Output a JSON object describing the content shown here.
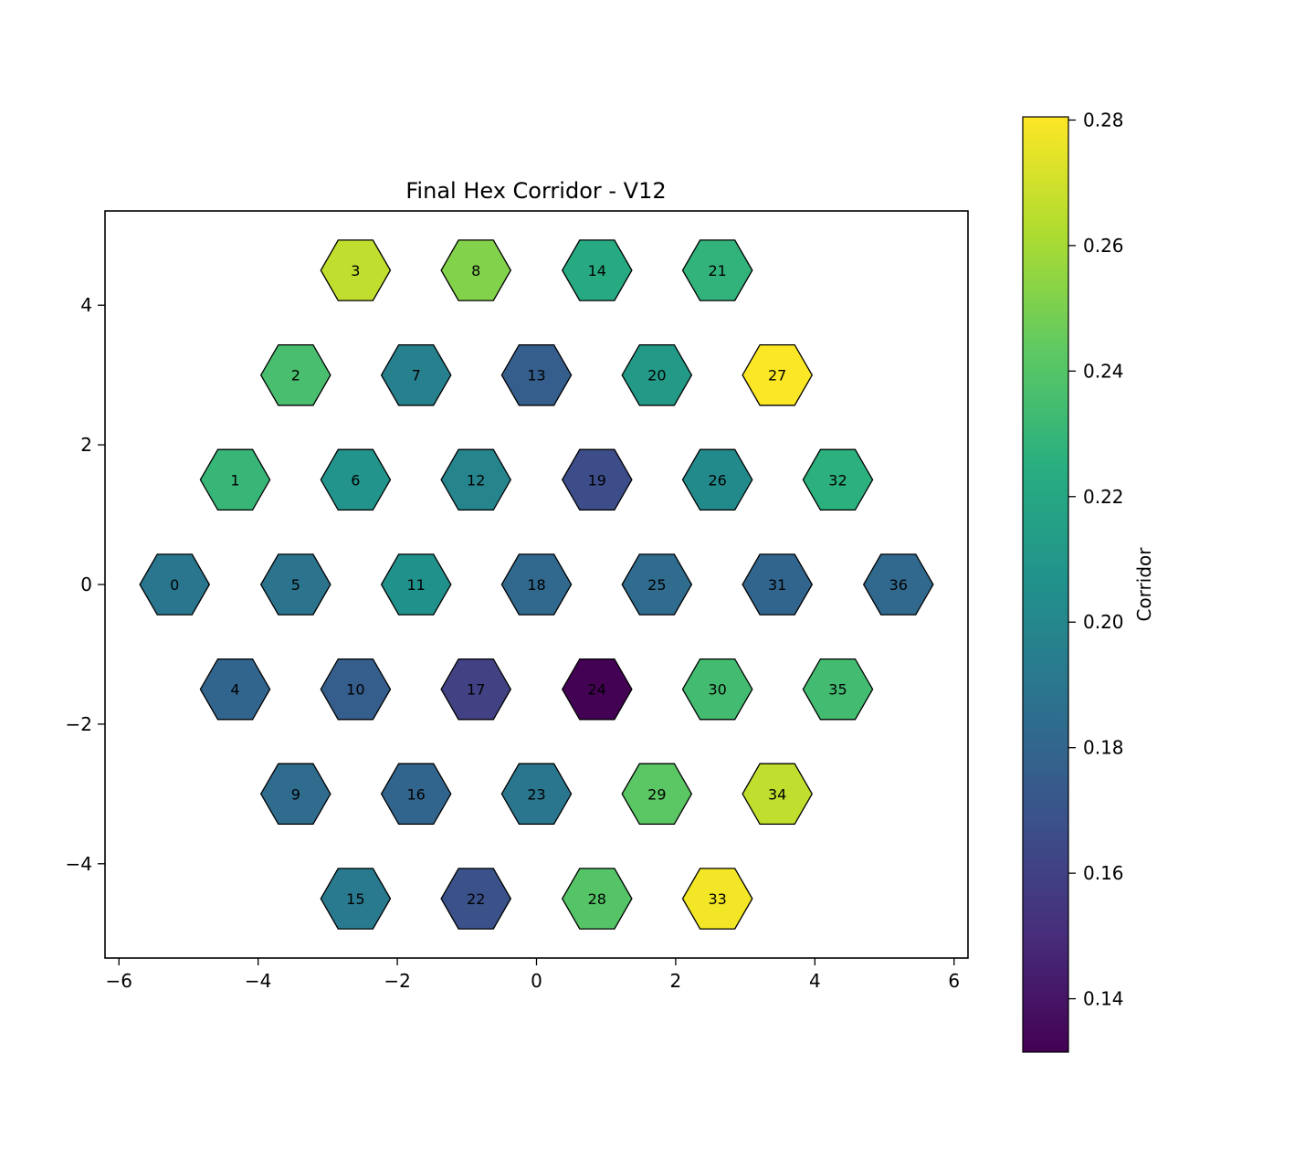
{
  "chart_data": {
    "type": "heatmap",
    "title": "Final Hex Corridor - V12",
    "xlabel": "",
    "ylabel": "",
    "xlim": [
      -6.2,
      6.2
    ],
    "ylim": [
      -5.35,
      5.35
    ],
    "xticks": [
      -6,
      -4,
      -2,
      0,
      2,
      4,
      6
    ],
    "xtick_labels": [
      "−6",
      "−4",
      "−2",
      "0",
      "2",
      "4",
      "6"
    ],
    "yticks": [
      -4,
      -2,
      0,
      2,
      4
    ],
    "ytick_labels": [
      "−4",
      "−2",
      "0",
      "2",
      "4"
    ],
    "grid": false,
    "colormap": "viridis",
    "colorbar": {
      "label": "Corridor",
      "range": [
        0.1315,
        0.2805
      ],
      "ticks": [
        0.14,
        0.16,
        0.18,
        0.2,
        0.22,
        0.24,
        0.26,
        0.28
      ],
      "tick_labels": [
        "0.14",
        "0.16",
        "0.18",
        "0.20",
        "0.22",
        "0.24",
        "0.26",
        "0.28"
      ]
    },
    "cells": [
      {
        "label": "0",
        "x": -5.2,
        "y": 0.0,
        "value": 0.19
      },
      {
        "label": "1",
        "x": -4.33,
        "y": 1.5,
        "value": 0.23
      },
      {
        "label": "2",
        "x": -3.46,
        "y": 3.0,
        "value": 0.236
      },
      {
        "label": "3",
        "x": -2.6,
        "y": 4.5,
        "value": 0.266
      },
      {
        "label": "4",
        "x": -4.33,
        "y": -1.5,
        "value": 0.18
      },
      {
        "label": "5",
        "x": -3.46,
        "y": 0.0,
        "value": 0.188
      },
      {
        "label": "6",
        "x": -2.6,
        "y": 1.5,
        "value": 0.208
      },
      {
        "label": "7",
        "x": -1.73,
        "y": 3.0,
        "value": 0.196
      },
      {
        "label": "8",
        "x": -0.87,
        "y": 4.5,
        "value": 0.252
      },
      {
        "label": "9",
        "x": -3.46,
        "y": -3.0,
        "value": 0.184
      },
      {
        "label": "10",
        "x": -2.6,
        "y": -1.5,
        "value": 0.176
      },
      {
        "label": "11",
        "x": -1.73,
        "y": 0.0,
        "value": 0.206
      },
      {
        "label": "12",
        "x": -0.87,
        "y": 1.5,
        "value": 0.198
      },
      {
        "label": "13",
        "x": 0.0,
        "y": 3.0,
        "value": 0.176
      },
      {
        "label": "14",
        "x": 0.87,
        "y": 4.5,
        "value": 0.222
      },
      {
        "label": "15",
        "x": -2.6,
        "y": -4.5,
        "value": 0.192
      },
      {
        "label": "16",
        "x": -1.73,
        "y": -3.0,
        "value": 0.18
      },
      {
        "label": "17",
        "x": -0.87,
        "y": -1.5,
        "value": 0.16
      },
      {
        "label": "18",
        "x": 0.0,
        "y": 0.0,
        "value": 0.182
      },
      {
        "label": "19",
        "x": 0.87,
        "y": 1.5,
        "value": 0.166
      },
      {
        "label": "20",
        "x": 1.73,
        "y": 3.0,
        "value": 0.212
      },
      {
        "label": "21",
        "x": 2.6,
        "y": 4.5,
        "value": 0.228
      },
      {
        "label": "22",
        "x": -0.87,
        "y": -4.5,
        "value": 0.168
      },
      {
        "label": "23",
        "x": 0.0,
        "y": -3.0,
        "value": 0.19
      },
      {
        "label": "24",
        "x": 0.87,
        "y": -1.5,
        "value": 0.132
      },
      {
        "label": "25",
        "x": 1.73,
        "y": 0.0,
        "value": 0.184
      },
      {
        "label": "26",
        "x": 2.6,
        "y": 1.5,
        "value": 0.202
      },
      {
        "label": "27",
        "x": 3.46,
        "y": 3.0,
        "value": 0.28
      },
      {
        "label": "28",
        "x": 0.87,
        "y": -4.5,
        "value": 0.24
      },
      {
        "label": "29",
        "x": 1.73,
        "y": -3.0,
        "value": 0.242
      },
      {
        "label": "30",
        "x": 2.6,
        "y": -1.5,
        "value": 0.234
      },
      {
        "label": "31",
        "x": 3.46,
        "y": 0.0,
        "value": 0.18
      },
      {
        "label": "32",
        "x": 4.33,
        "y": 1.5,
        "value": 0.226
      },
      {
        "label": "33",
        "x": 2.6,
        "y": -4.5,
        "value": 0.278
      },
      {
        "label": "34",
        "x": 3.46,
        "y": -3.0,
        "value": 0.266
      },
      {
        "label": "35",
        "x": 4.33,
        "y": -1.5,
        "value": 0.234
      },
      {
        "label": "36",
        "x": 5.2,
        "y": 0.0,
        "value": 0.182
      }
    ]
  }
}
